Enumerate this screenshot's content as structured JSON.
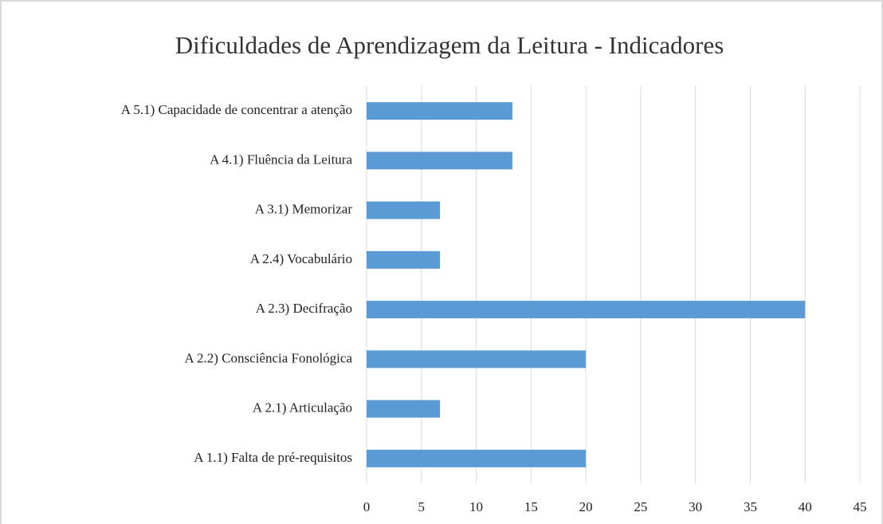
{
  "chart_data": {
    "type": "barh",
    "title": "Dificuldades de Aprendizagem da Leitura - Indicadores",
    "categories": [
      "A 5.1) Capacidade de concentrar a atenção",
      "A 4.1) Fluência da Leitura",
      "A 3.1) Memorizar",
      "A 2.4) Vocabulário",
      "A 2.3) Decifração",
      "A 2.2) Consciência Fonológica",
      "A 2.1) Articulação",
      "A 1.1) Falta de pré-requisitos"
    ],
    "values": [
      13.3,
      13.3,
      6.7,
      6.7,
      40,
      20,
      6.7,
      20
    ],
    "color": "#5b9bd5",
    "xlim": [
      0,
      45
    ],
    "xticks": [
      0,
      5,
      10,
      15,
      20,
      25,
      30,
      35,
      40,
      45
    ],
    "grid": true
  }
}
